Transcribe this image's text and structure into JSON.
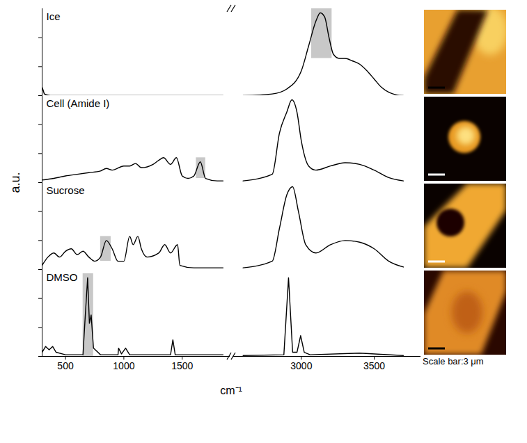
{
  "chart_data": {
    "type": "line",
    "xlabel": "cm⁻¹",
    "ylabel": "a.u.",
    "tick_labels": "x",
    "grid": false,
    "segments": [
      {
        "xlim": [
          300,
          1910
        ],
        "xticks": [
          500,
          1000,
          1500
        ]
      },
      {
        "xlim": [
          2530,
          3820
        ],
        "xticks": [
          3000,
          3500
        ]
      }
    ],
    "annotations": [
      "Scale bar:3 μm"
    ],
    "series": [
      {
        "name": "Ice",
        "color": "#000000",
        "ylim": [
          0,
          1.05
        ],
        "yticks": [
          0,
          0.35,
          0.7
        ],
        "band": {
          "x": [
            3070,
            3210
          ],
          "y": [
            0.45,
            1.05
          ]
        },
        "x": [
          300,
          310,
          320,
          340,
          400,
          600,
          1000,
          1500,
          1850,
          2600,
          2800,
          2900,
          3000,
          3050,
          3100,
          3130,
          3160,
          3190,
          3220,
          3260,
          3300,
          3350,
          3400,
          3450,
          3500,
          3550,
          3600,
          3650,
          3700
        ],
        "values": [
          0.1,
          0.06,
          0.02,
          0.01,
          0,
          0,
          0,
          0,
          0,
          0,
          0.02,
          0.08,
          0.3,
          0.6,
          0.9,
          1.0,
          0.95,
          0.7,
          0.5,
          0.45,
          0.45,
          0.42,
          0.38,
          0.3,
          0.2,
          0.1,
          0.04,
          0.01,
          0
        ]
      },
      {
        "name": "Cell (Amide I)",
        "color": "#000000",
        "ylim": [
          0,
          1.05
        ],
        "yticks": [
          0,
          0.35,
          0.7
        ],
        "band": {
          "x": [
            1620,
            1700
          ],
          "y": [
            0.05,
            0.3
          ]
        },
        "x": [
          300,
          400,
          500,
          600,
          700,
          800,
          850,
          900,
          1000,
          1050,
          1100,
          1150,
          1250,
          1300,
          1340,
          1400,
          1450,
          1500,
          1550,
          1600,
          1655,
          1700,
          1800,
          1850,
          2600,
          2800,
          2850,
          2900,
          2935,
          2970,
          3000,
          3050,
          3100,
          3200,
          3300,
          3400,
          3500,
          3600,
          3700
        ],
        "values": [
          0.03,
          0.05,
          0.08,
          0.1,
          0.12,
          0.14,
          0.17,
          0.15,
          0.2,
          0.2,
          0.23,
          0.18,
          0.22,
          0.27,
          0.3,
          0.22,
          0.3,
          0.08,
          0.05,
          0.08,
          0.25,
          0.05,
          0.02,
          0.02,
          0.02,
          0.1,
          0.6,
          0.85,
          1.0,
          0.85,
          0.5,
          0.2,
          0.15,
          0.2,
          0.24,
          0.22,
          0.15,
          0.06,
          0.02
        ]
      },
      {
        "name": "Sucrose",
        "color": "#000000",
        "ylim": [
          0,
          1.05
        ],
        "yticks": [
          0,
          0.35,
          0.7
        ],
        "band": {
          "x": [
            800,
            890
          ],
          "y": [
            0.1,
            0.4
          ]
        },
        "x": [
          300,
          350,
          400,
          450,
          500,
          550,
          600,
          650,
          700,
          750,
          800,
          850,
          900,
          950,
          1000,
          1050,
          1080,
          1120,
          1150,
          1200,
          1300,
          1350,
          1400,
          1460,
          1480,
          1600,
          1850,
          2600,
          2800,
          2850,
          2900,
          2940,
          2980,
          3030,
          3100,
          3200,
          3300,
          3400,
          3500,
          3600,
          3700
        ],
        "values": [
          0.05,
          0.15,
          0.2,
          0.15,
          0.22,
          0.25,
          0.18,
          0.22,
          0.15,
          0.1,
          0.15,
          0.35,
          0.25,
          0.1,
          0.1,
          0.4,
          0.3,
          0.4,
          0.25,
          0.15,
          0.2,
          0.3,
          0.2,
          0.3,
          0.05,
          0.02,
          0.02,
          0.02,
          0.1,
          0.5,
          0.9,
          1.0,
          0.7,
          0.3,
          0.2,
          0.3,
          0.35,
          0.33,
          0.25,
          0.1,
          0.03
        ]
      },
      {
        "name": "DMSO",
        "color": "#000000",
        "ylim": [
          0,
          1.05
        ],
        "yticks": [
          0,
          0.35,
          0.7
        ],
        "band": {
          "x": [
            650,
            740
          ],
          "y": [
            0,
            1.0
          ]
        },
        "x": [
          300,
          330,
          360,
          390,
          420,
          500,
          650,
          670,
          690,
          705,
          720,
          740,
          800,
          950,
          955,
          980,
          1015,
          1050,
          1400,
          1420,
          1440,
          1850,
          2600,
          2880,
          2912,
          2940,
          2970,
          2995,
          3020,
          3060,
          3400,
          3700
        ],
        "values": [
          0.05,
          0.12,
          0.08,
          0.12,
          0.05,
          0.02,
          0.02,
          0.5,
          0.95,
          0.4,
          0.5,
          0.1,
          0.02,
          0.02,
          0.1,
          0.03,
          0.1,
          0.02,
          0.02,
          0.2,
          0.02,
          0.02,
          0.01,
          0.02,
          0.95,
          0.05,
          0.05,
          0.25,
          0.05,
          0.02,
          0.04,
          0.01
        ]
      }
    ]
  }
}
